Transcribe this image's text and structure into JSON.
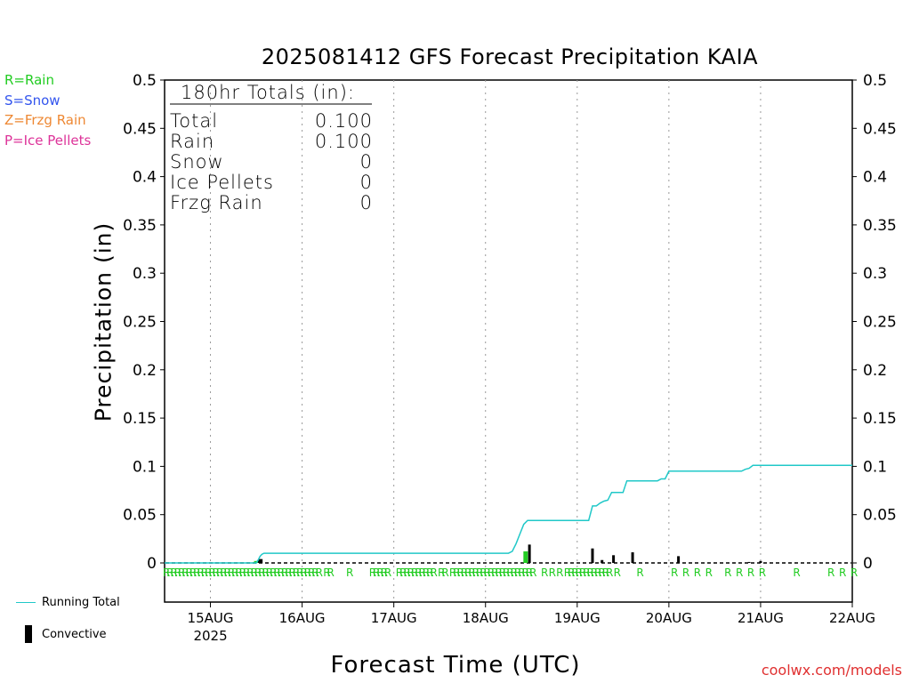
{
  "title": "2025081412 GFS Forecast Precipitation KAIA",
  "legend_top": [
    {
      "label": "R=Rain",
      "color": "#22cc22"
    },
    {
      "label": "S=Snow",
      "color": "#3355ee"
    },
    {
      "label": "Z=Frzg Rain",
      "color": "#ee8833"
    },
    {
      "label": "P=Ice Pellets",
      "color": "#dd3399"
    }
  ],
  "legend_bottom": {
    "running_total": "Running Total",
    "convective": "Convective"
  },
  "source": "coolwx.com/models",
  "totals_box": {
    "header": "180hr Totals (in):",
    "rows": [
      {
        "label": "Total",
        "value": "0.100"
      },
      {
        "label": "Rain",
        "value": "0.100"
      },
      {
        "label": "Snow",
        "value": "0"
      },
      {
        "label": "Ice Pellets",
        "value": "0"
      },
      {
        "label": "Frzg Rain",
        "value": "0"
      }
    ]
  },
  "chart_data": {
    "type": "bar",
    "title": "2025081412 GFS Forecast Precipitation KAIA",
    "xlabel": "Forecast Time (UTC)",
    "ylabel": "Precipitation (in)",
    "ylim": [
      0,
      0.5
    ],
    "yticks": [
      "0",
      "0.05",
      "0.1",
      "0.15",
      "0.2",
      "0.25",
      "0.3",
      "0.35",
      "0.4",
      "0.45",
      "0.5"
    ],
    "xlim_hours": [
      0,
      180
    ],
    "grid": "vertical dotted at day boundaries",
    "xticks": [
      {
        "hour": 12,
        "label": "15AUG",
        "sublabel": "2025"
      },
      {
        "hour": 36,
        "label": "16AUG"
      },
      {
        "hour": 60,
        "label": "17AUG"
      },
      {
        "hour": 84,
        "label": "18AUG"
      },
      {
        "hour": 108,
        "label": "19AUG"
      },
      {
        "hour": 132,
        "label": "20AUG"
      },
      {
        "hour": 156,
        "label": "21AUG"
      },
      {
        "hour": 180,
        "label": "22AUG"
      }
    ],
    "running_total": {
      "name": "Running Total",
      "color": "#20c8c8",
      "points": [
        [
          0,
          0
        ],
        [
          24,
          0
        ],
        [
          24.5,
          0.003
        ],
        [
          25,
          0.007
        ],
        [
          25.5,
          0.009
        ],
        [
          26,
          0.01
        ],
        [
          90,
          0.01
        ],
        [
          91,
          0.012
        ],
        [
          92,
          0.02
        ],
        [
          93,
          0.03
        ],
        [
          94,
          0.04
        ],
        [
          95,
          0.044
        ],
        [
          111,
          0.044
        ],
        [
          112,
          0.059
        ],
        [
          113,
          0.059
        ],
        [
          114,
          0.062
        ],
        [
          115,
          0.064
        ],
        [
          116,
          0.065
        ],
        [
          117,
          0.073
        ],
        [
          120,
          0.073
        ],
        [
          121,
          0.085
        ],
        [
          129,
          0.085
        ],
        [
          130,
          0.087
        ],
        [
          131,
          0.087
        ],
        [
          132,
          0.095
        ],
        [
          151,
          0.095
        ],
        [
          152,
          0.097
        ],
        [
          153,
          0.098
        ],
        [
          154,
          0.101
        ],
        [
          180,
          0.101
        ]
      ]
    },
    "series": [
      {
        "name": "Rain",
        "color": "#22cc22",
        "x": [
          24,
          24.5,
          94.5
        ],
        "values": [
          0.002,
          0.002,
          0.012
        ]
      },
      {
        "name": "Convective",
        "color": "#000000",
        "x": [
          24.8,
          25.3,
          95.5,
          112,
          114.5,
          117.5,
          122.5,
          134.5,
          153,
          156
        ],
        "values": [
          0.004,
          0.004,
          0.019,
          0.015,
          0.003,
          0.008,
          0.011,
          0.007,
          0.001,
          0.002
        ]
      }
    ],
    "ptype_letter": "R",
    "ptype_hours": [
      0,
      1,
      2,
      3,
      4,
      5,
      6,
      7,
      8,
      9,
      10,
      11,
      12,
      13,
      14,
      15,
      16,
      17,
      18,
      19,
      20,
      21,
      22,
      23,
      24,
      25,
      26,
      27,
      28,
      29,
      30,
      31,
      32,
      33,
      34,
      35,
      36,
      37,
      38,
      39,
      40,
      42,
      43,
      48,
      54,
      55,
      56,
      57,
      58,
      61,
      62,
      63,
      64,
      65,
      66,
      67,
      68,
      69,
      70,
      72,
      73,
      75,
      76,
      77,
      78,
      79,
      80,
      81,
      82,
      83,
      84,
      85,
      86,
      87,
      88,
      89,
      90,
      91,
      92,
      93,
      94,
      95,
      96,
      99,
      101,
      103,
      105,
      106,
      107,
      108,
      109,
      110,
      111,
      112,
      113,
      114,
      115,
      116,
      118,
      124,
      133,
      136,
      139,
      142,
      147,
      150,
      153,
      156,
      165,
      174,
      177,
      180
    ]
  }
}
